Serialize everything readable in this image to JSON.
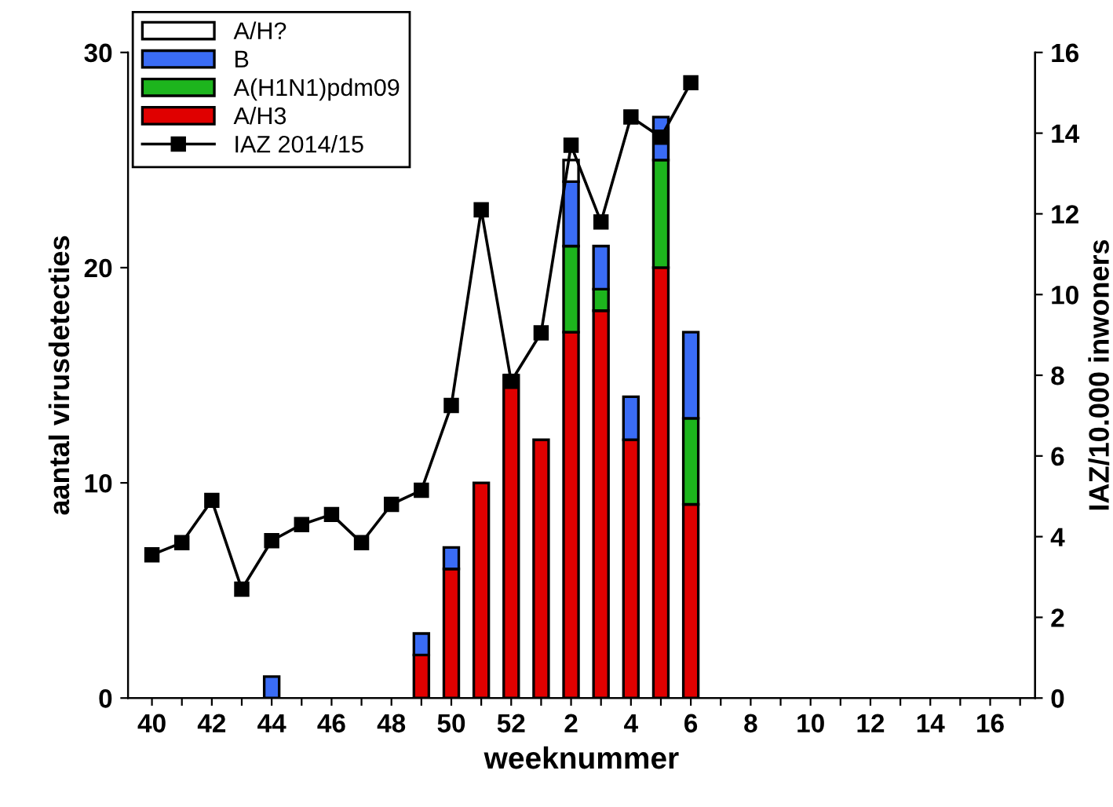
{
  "chart_data": {
    "type": "bar",
    "stacked": true,
    "xlabel": "weeknummer",
    "ylabel": "aantal virusdetecties",
    "y2label": "IAZ/10.000 inwoners",
    "categories": [
      "40",
      null,
      "42",
      null,
      "44",
      null,
      "46",
      null,
      "48",
      null,
      "50",
      null,
      "52",
      null,
      "2",
      null,
      "4",
      null,
      "6",
      null,
      "8",
      null,
      "10",
      null,
      "12",
      null,
      "14",
      null,
      "16",
      null
    ],
    "series": [
      {
        "name": "A/H3",
        "color": "#e00000",
        "values": [
          null,
          null,
          null,
          null,
          null,
          null,
          null,
          null,
          null,
          2,
          6,
          10,
          15,
          12,
          17,
          18,
          12,
          20,
          9,
          null,
          null,
          null,
          null,
          null,
          null,
          null,
          null,
          null,
          null,
          null
        ]
      },
      {
        "name": "A(H1N1)pdm09",
        "color": "#1db51d",
        "values": [
          null,
          null,
          null,
          null,
          null,
          null,
          null,
          null,
          null,
          null,
          null,
          null,
          null,
          null,
          4,
          1,
          null,
          5,
          4,
          null,
          null,
          null,
          null,
          null,
          null,
          null,
          null,
          null,
          null,
          null
        ]
      },
      {
        "name": "B",
        "color": "#3a6cf5",
        "values": [
          null,
          null,
          null,
          null,
          1,
          null,
          null,
          null,
          null,
          1,
          1,
          null,
          null,
          null,
          3,
          2,
          2,
          2,
          4,
          null,
          null,
          null,
          null,
          null,
          null,
          null,
          null,
          null,
          null,
          null
        ]
      },
      {
        "name": "A/H?",
        "color": "#ffffff",
        "values": [
          null,
          null,
          null,
          null,
          null,
          null,
          null,
          null,
          null,
          null,
          null,
          null,
          null,
          null,
          1,
          null,
          null,
          null,
          null,
          null,
          null,
          null,
          null,
          null,
          null,
          null,
          null,
          null,
          null,
          null
        ]
      },
      {
        "name": "IAZ 2014/15",
        "type": "line",
        "axis": "y2",
        "color": "#000000",
        "marker": "square",
        "values": [
          3.55,
          3.85,
          4.9,
          2.7,
          3.9,
          4.3,
          4.55,
          3.85,
          4.8,
          5.15,
          7.25,
          12.1,
          7.85,
          9.05,
          13.7,
          11.8,
          14.4,
          13.9,
          15.25,
          null,
          null,
          null,
          null,
          null,
          null,
          null,
          null,
          null,
          null,
          null
        ]
      }
    ],
    "ylim": [
      0,
      30
    ],
    "yticks": [
      0,
      10,
      20,
      30
    ],
    "y2lim": [
      0,
      16
    ],
    "y2ticks": [
      0,
      2,
      4,
      6,
      8,
      10,
      12,
      14,
      16
    ],
    "legend": "top left",
    "grid": false
  }
}
